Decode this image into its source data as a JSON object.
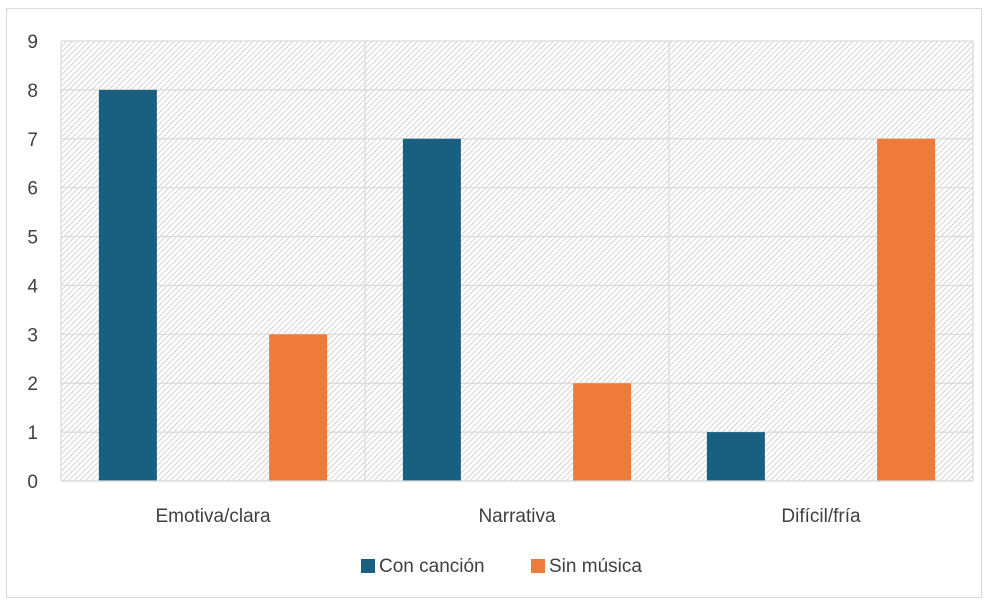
{
  "chart_data": {
    "type": "bar",
    "categories": [
      "Emotiva/clara",
      "Narrativa",
      "Difícil/fría"
    ],
    "series": [
      {
        "name": "Con canción",
        "values": [
          8,
          7,
          1
        ],
        "color": "#1a5f80"
      },
      {
        "name": "Sin música",
        "values": [
          3,
          2,
          7
        ],
        "color": "#ee7b3c"
      }
    ],
    "ylim": [
      0,
      9
    ],
    "yticks": [
      "0",
      "1",
      "2",
      "3",
      "4",
      "5",
      "6",
      "7",
      "8",
      "9"
    ],
    "title": "",
    "xlabel": "",
    "ylabel": "",
    "grid": true,
    "legend_position": "bottom",
    "plot_background": "hatched"
  }
}
